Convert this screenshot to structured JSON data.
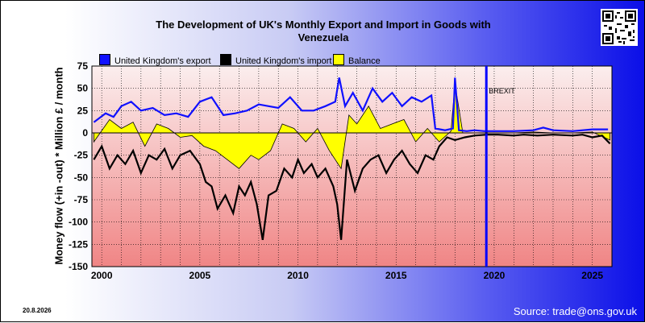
{
  "title_line1": "The Development of UK's Monthly Export and Import in Goods with",
  "title_line2": "Venezuela",
  "ylabel": "Money flow (+in -out) * Million £ / month",
  "date_stamp": "20.8.2026",
  "source": "Source: trade@ons.gov.uk",
  "colors": {
    "export": "#1010ff",
    "import": "#000000",
    "balance": "#ffff00",
    "brexit": "#0000ff"
  },
  "chart_data": {
    "type": "line",
    "x_ticks": [
      "2000",
      "2005",
      "2010",
      "2015",
      "2020",
      "2025"
    ],
    "y_ticks": [
      "75",
      "50",
      "25",
      "0",
      "-25",
      "-50",
      "-75",
      "-100",
      "-125",
      "-150"
    ],
    "ylim": [
      -150,
      75
    ],
    "xlim": [
      1999.5,
      2026.0
    ],
    "grid": true,
    "legend_position": "top-left",
    "annotation": {
      "label": "BREXIT",
      "x": 2019.6
    },
    "series": [
      {
        "name": "United Kingdom's export",
        "x": [
          1999.6,
          2000.2,
          2000.6,
          2001.0,
          2001.5,
          2002.0,
          2002.6,
          2003.2,
          2003.8,
          2004.4,
          2005.0,
          2005.6,
          2006.2,
          2006.8,
          2007.4,
          2008.0,
          2008.5,
          2009.0,
          2009.6,
          2010.2,
          2010.8,
          2011.4,
          2011.9,
          2012.1,
          2012.4,
          2012.8,
          2013.3,
          2013.8,
          2014.3,
          2014.8,
          2015.3,
          2015.8,
          2016.3,
          2016.8,
          2017.0,
          2017.5,
          2017.9,
          2018.0,
          2018.2,
          2018.6,
          2019.0,
          2019.5,
          2020.0,
          2021.0,
          2022.0,
          2022.5,
          2023.0,
          2024.0,
          2025.0,
          2025.8
        ],
        "values": [
          12,
          22,
          18,
          30,
          35,
          25,
          28,
          20,
          22,
          18,
          35,
          40,
          20,
          22,
          25,
          32,
          30,
          28,
          40,
          25,
          25,
          30,
          35,
          62,
          30,
          45,
          25,
          50,
          35,
          45,
          30,
          40,
          35,
          42,
          5,
          3,
          5,
          62,
          3,
          2,
          3,
          2,
          2,
          2,
          3,
          6,
          3,
          2,
          4,
          4
        ]
      },
      {
        "name": "United Kingdom's import",
        "x": [
          1999.6,
          2000.0,
          2000.4,
          2000.8,
          2001.2,
          2001.6,
          2002.0,
          2002.4,
          2002.8,
          2003.2,
          2003.6,
          2004.0,
          2004.5,
          2005.0,
          2005.3,
          2005.6,
          2005.9,
          2006.3,
          2006.7,
          2007.0,
          2007.3,
          2007.6,
          2007.9,
          2008.2,
          2008.5,
          2008.9,
          2009.3,
          2009.7,
          2010.0,
          2010.3,
          2010.7,
          2011.0,
          2011.4,
          2011.8,
          2012.0,
          2012.2,
          2012.5,
          2012.9,
          2013.3,
          2013.7,
          2014.1,
          2014.5,
          2014.9,
          2015.3,
          2015.7,
          2016.1,
          2016.5,
          2016.9,
          2017.2,
          2017.6,
          2018.0,
          2018.5,
          2019.0,
          2019.6,
          2020.2,
          2021.0,
          2021.5,
          2022.2,
          2023.0,
          2024.0,
          2024.5,
          2025.0,
          2025.5,
          2025.9
        ],
        "values": [
          -30,
          -15,
          -40,
          -25,
          -35,
          -20,
          -45,
          -25,
          -30,
          -18,
          -40,
          -25,
          -20,
          -35,
          -55,
          -60,
          -85,
          -70,
          -90,
          -60,
          -70,
          -55,
          -80,
          -120,
          -70,
          -65,
          -40,
          -50,
          -30,
          -45,
          -35,
          -50,
          -40,
          -60,
          -80,
          -120,
          -30,
          -65,
          -40,
          -30,
          -25,
          -45,
          -30,
          -20,
          -35,
          -45,
          -25,
          -30,
          -15,
          -5,
          -8,
          -5,
          -3,
          -2,
          -2,
          -3,
          -2,
          -3,
          -2,
          -3,
          -2,
          -5,
          -3,
          -12
        ]
      },
      {
        "name": "Balance",
        "x": [
          1999.6,
          2000.4,
          2001.0,
          2001.6,
          2002.2,
          2002.8,
          2003.4,
          2004.0,
          2004.6,
          2005.2,
          2005.8,
          2006.4,
          2007.0,
          2007.6,
          2008.0,
          2008.6,
          2009.2,
          2009.8,
          2010.4,
          2011.0,
          2011.6,
          2012.2,
          2012.6,
          2013.0,
          2013.6,
          2014.2,
          2014.8,
          2015.4,
          2016.0,
          2016.6,
          2017.2,
          2017.8,
          2018.0,
          2018.4,
          2019.0,
          2020.0,
          2021.0,
          2022.0,
          2023.0,
          2024.0,
          2025.0,
          2025.9
        ],
        "values": [
          -10,
          15,
          5,
          12,
          -15,
          10,
          5,
          -5,
          -3,
          -15,
          -20,
          -30,
          -40,
          -25,
          -30,
          -20,
          10,
          5,
          -10,
          5,
          -20,
          -40,
          20,
          10,
          30,
          5,
          10,
          15,
          -10,
          5,
          -10,
          2,
          55,
          0,
          0,
          0,
          0,
          1,
          0,
          0,
          1,
          -8
        ]
      }
    ]
  }
}
